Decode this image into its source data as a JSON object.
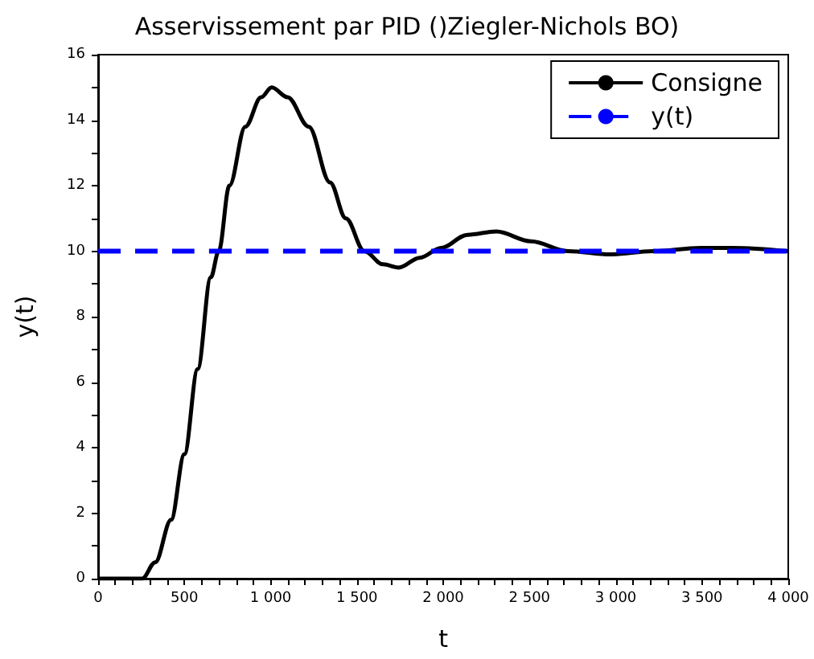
{
  "chart_data": {
    "type": "line",
    "title": "Asservissement par PID ()Ziegler-Nichols BO)",
    "xlabel": "t",
    "ylabel": "y(t)",
    "series": [
      {
        "name": "Consigne",
        "color": "#000000",
        "line_style": "solid",
        "x": [
          0,
          255,
          331,
          423,
          500,
          577,
          653,
          699,
          761,
          853,
          945,
          1006,
          1098,
          1221,
          1344,
          1436,
          1543,
          1650,
          1742,
          1865,
          1988,
          2141,
          2308,
          2508,
          2723,
          2969,
          3215,
          3492,
          3677,
          4000
        ],
        "values": [
          0,
          0,
          0.5,
          1.8,
          3.8,
          6.4,
          9.2,
          10,
          12,
          13.8,
          14.7,
          15,
          14.7,
          13.8,
          12.1,
          11,
          10,
          9.6,
          9.5,
          9.8,
          10.1,
          10.5,
          10.6,
          10.3,
          10,
          9.9,
          10,
          10.1,
          10.1,
          10
        ]
      },
      {
        "name": "y(t)",
        "color": "#0000ff",
        "line_style": "dashed",
        "x": [
          0,
          4000
        ],
        "values": [
          10,
          10
        ]
      }
    ],
    "xlim": [
      0,
      4000
    ],
    "xticks": [
      0,
      {
        "value": 500,
        "label": "500"
      },
      {
        "value": 1000,
        "label": "1 000"
      },
      {
        "value": 1500,
        "label": "1 500"
      },
      {
        "value": 2000,
        "label": "2 000"
      },
      {
        "value": 2500,
        "label": "2 500"
      },
      {
        "value": 3000,
        "label": "3 000"
      },
      {
        "value": 3500,
        "label": "3 500"
      },
      {
        "value": 4000,
        "label": "4 000"
      },
      {
        "value": 100,
        "label": null
      },
      {
        "value": 200,
        "label": null
      },
      {
        "value": 300,
        "label": null
      },
      {
        "value": 400,
        "label": null
      },
      {
        "value": 600,
        "label": null
      },
      {
        "value": 700,
        "label": null
      },
      {
        "value": 800,
        "label": null
      },
      {
        "value": 900,
        "label": null
      },
      {
        "value": 1100,
        "label": null
      },
      {
        "value": 1200,
        "label": null
      },
      {
        "value": 1300,
        "label": null
      },
      {
        "value": 1400,
        "label": null
      },
      {
        "value": 1600,
        "label": null
      },
      {
        "value": 1700,
        "label": null
      },
      {
        "value": 1800,
        "label": null
      },
      {
        "value": 1900,
        "label": null
      },
      {
        "value": 2100,
        "label": null
      },
      {
        "value": 2200,
        "label": null
      },
      {
        "value": 2300,
        "label": null
      },
      {
        "value": 2400,
        "label": null
      },
      {
        "value": 2600,
        "label": null
      },
      {
        "value": 2700,
        "label": null
      },
      {
        "value": 2800,
        "label": null
      },
      {
        "value": 2900,
        "label": null
      },
      {
        "value": 3100,
        "label": null
      },
      {
        "value": 3200,
        "label": null
      },
      {
        "value": 3300,
        "label": null
      },
      {
        "value": 3400,
        "label": null
      },
      {
        "value": 3600,
        "label": null
      },
      {
        "value": 3700,
        "label": null
      },
      {
        "value": 3800,
        "label": null
      },
      {
        "value": 3900,
        "label": null
      }
    ],
    "ylim": [
      0,
      16
    ],
    "yticks": [
      0,
      2,
      4,
      6,
      8,
      10,
      12,
      14,
      16,
      {
        "value": 1,
        "label": null
      },
      {
        "value": 3,
        "label": null
      },
      {
        "value": 5,
        "label": null
      },
      {
        "value": 7,
        "label": null
      },
      {
        "value": 9,
        "label": null
      },
      {
        "value": 11,
        "label": null
      },
      {
        "value": 13,
        "label": null
      },
      {
        "value": 15,
        "label": null
      }
    ],
    "grid": false,
    "legend": "top right",
    "marker": "none"
  }
}
